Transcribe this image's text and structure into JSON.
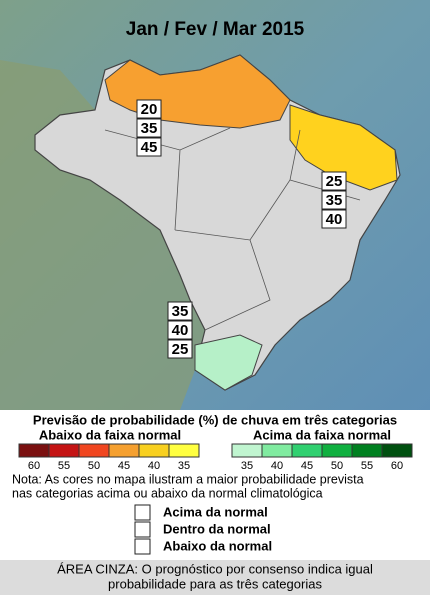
{
  "title": "Jan / Fev / Mar 2015",
  "boxes": [
    {
      "values": [
        20,
        35,
        45
      ]
    },
    {
      "values": [
        25,
        35,
        40
      ]
    },
    {
      "values": [
        35,
        40,
        25
      ]
    }
  ],
  "legend": {
    "title": "Previsão de probabilidade (%) de chuva em três categorias",
    "below": {
      "label": "Abaixo da faixa normal",
      "steps": [
        {
          "value": 60,
          "color": "#7a1010"
        },
        {
          "value": 55,
          "color": "#c41414"
        },
        {
          "value": 50,
          "color": "#f04620"
        },
        {
          "value": 45,
          "color": "#f5a030"
        },
        {
          "value": 40,
          "color": "#f8d020"
        },
        {
          "value": 35,
          "color": "#ffff40"
        }
      ]
    },
    "above": {
      "label": "Acima da faixa normal",
      "steps": [
        {
          "value": 35,
          "color": "#c0f5d0"
        },
        {
          "value": 40,
          "color": "#80eba0"
        },
        {
          "value": 45,
          "color": "#30d070"
        },
        {
          "value": 50,
          "color": "#10b040"
        },
        {
          "value": 55,
          "color": "#008020"
        },
        {
          "value": 60,
          "color": "#005010"
        }
      ]
    }
  },
  "note": [
    "Nota: As cores no mapa ilustram a maior probabilidade prevista",
    "nas categorias acima ou abaixo da normal climatológica"
  ],
  "categories": [
    "Acima da normal",
    "Dentro da normal",
    "Abaixo da normal"
  ],
  "gray_note": [
    "ÁREA CINZA: O prognóstico por consenso indica igual",
    "probabilidade para as três categorias"
  ]
}
